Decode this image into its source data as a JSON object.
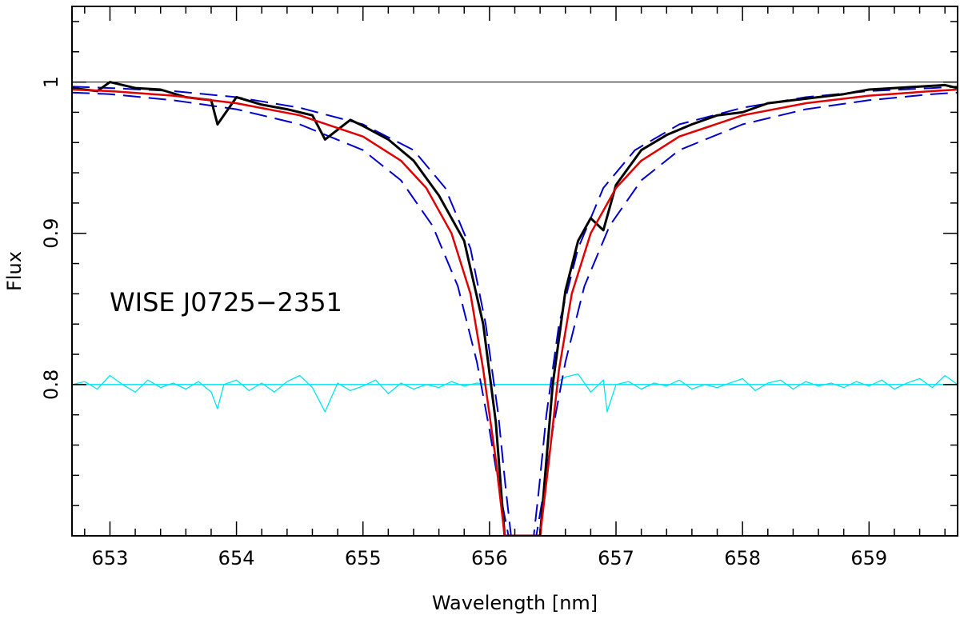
{
  "chart_data": {
    "type": "line",
    "title": "",
    "xlabel": "Wavelength [nm]",
    "ylabel": "Flux",
    "xlim": [
      652.7,
      659.7
    ],
    "ylim": [
      0.7,
      1.05
    ],
    "xticks": [
      653,
      654,
      655,
      656,
      657,
      658,
      659
    ],
    "xtick_labels": [
      "653",
      "654",
      "655",
      "656",
      "657",
      "658",
      "659"
    ],
    "yticks": [
      0.8,
      0.9,
      1.0
    ],
    "ytick_labels": [
      "0.8",
      "0.9",
      "1"
    ],
    "grid": false,
    "annotation": "WISE J0725−2351",
    "colors": {
      "observed": "#000000",
      "model": "#e00000",
      "model_bounds": "#0000cc",
      "residuals": "#00e5ee",
      "continuum": "#000000"
    },
    "series": [
      {
        "style": "solid-black",
        "x": [
          652.7,
          652.9,
          653.0,
          653.2,
          653.4,
          653.6,
          653.8,
          653.85,
          654.0,
          654.2,
          654.4,
          654.6,
          654.7,
          654.9,
          655.0,
          655.2,
          655.4,
          655.6,
          655.8,
          655.95,
          656.05,
          656.12,
          656.4,
          656.5,
          656.6,
          656.7,
          656.8,
          656.9,
          657.0,
          657.2,
          657.4,
          657.6,
          657.8,
          658.0,
          658.2,
          658.4,
          658.6,
          658.8,
          659.0,
          659.2,
          659.4,
          659.6,
          659.7
        ],
        "y": [
          0.996,
          0.994,
          1.0,
          0.996,
          0.995,
          0.99,
          0.988,
          0.972,
          0.99,
          0.985,
          0.982,
          0.978,
          0.962,
          0.975,
          0.971,
          0.962,
          0.948,
          0.925,
          0.895,
          0.84,
          0.775,
          0.7,
          0.7,
          0.8,
          0.862,
          0.895,
          0.91,
          0.902,
          0.932,
          0.955,
          0.965,
          0.972,
          0.978,
          0.98,
          0.986,
          0.988,
          0.99,
          0.992,
          0.995,
          0.996,
          0.997,
          0.998,
          0.996
        ]
      },
      {
        "style": "solid-red",
        "x": [
          652.7,
          653.0,
          653.5,
          654.0,
          654.5,
          655.0,
          655.3,
          655.5,
          655.7,
          655.85,
          655.95,
          656.05,
          656.12,
          656.4,
          656.47,
          656.55,
          656.65,
          656.8,
          657.0,
          657.2,
          657.5,
          658.0,
          658.5,
          659.0,
          659.5,
          659.7
        ],
        "y": [
          0.995,
          0.994,
          0.991,
          0.986,
          0.978,
          0.964,
          0.948,
          0.93,
          0.9,
          0.86,
          0.81,
          0.75,
          0.7,
          0.7,
          0.75,
          0.81,
          0.86,
          0.9,
          0.93,
          0.948,
          0.964,
          0.978,
          0.986,
          0.991,
          0.994,
          0.995
        ]
      },
      {
        "style": "dashed-blue-outer",
        "x": [
          652.7,
          653.0,
          653.5,
          654.0,
          654.5,
          655.0,
          655.3,
          655.55,
          655.75,
          655.9,
          656.0,
          656.08,
          656.15,
          656.37,
          656.43,
          656.5,
          656.6,
          656.75,
          656.95,
          657.2,
          657.5,
          658.0,
          658.5,
          659.0,
          659.5,
          659.7
        ],
        "y": [
          0.993,
          0.992,
          0.988,
          0.982,
          0.972,
          0.955,
          0.935,
          0.905,
          0.865,
          0.815,
          0.77,
          0.73,
          0.7,
          0.7,
          0.73,
          0.77,
          0.815,
          0.865,
          0.905,
          0.935,
          0.955,
          0.972,
          0.982,
          0.988,
          0.992,
          0.993
        ]
      },
      {
        "style": "dashed-blue-inner",
        "x": [
          652.7,
          653.0,
          653.5,
          654.0,
          654.5,
          655.0,
          655.4,
          655.65,
          655.85,
          655.97,
          656.07,
          656.13,
          656.17,
          656.35,
          656.39,
          656.45,
          656.55,
          656.7,
          656.9,
          657.15,
          657.5,
          658.0,
          658.5,
          659.0,
          659.5,
          659.7
        ],
        "y": [
          0.997,
          0.996,
          0.994,
          0.99,
          0.983,
          0.972,
          0.955,
          0.93,
          0.89,
          0.84,
          0.78,
          0.73,
          0.7,
          0.7,
          0.73,
          0.78,
          0.84,
          0.89,
          0.93,
          0.955,
          0.972,
          0.983,
          0.99,
          0.994,
          0.996,
          0.997
        ]
      },
      {
        "style": "solid-cyan",
        "x": [
          652.7,
          652.8,
          652.9,
          653.0,
          653.1,
          653.2,
          653.3,
          653.4,
          653.5,
          653.6,
          653.7,
          653.8,
          653.85,
          653.9,
          654.0,
          654.1,
          654.2,
          654.3,
          654.4,
          654.5,
          654.6,
          654.65,
          654.7,
          654.8,
          654.9,
          655.0,
          655.1,
          655.2,
          655.3,
          655.4,
          655.5,
          655.6,
          655.7,
          655.8,
          655.9,
          656.0,
          656.1,
          656.5,
          656.6,
          656.7,
          656.8,
          656.9,
          656.93,
          657.0,
          657.1,
          657.2,
          657.3,
          657.4,
          657.5,
          657.6,
          657.7,
          657.8,
          657.9,
          658.0,
          658.1,
          658.2,
          658.3,
          658.4,
          658.5,
          658.6,
          658.7,
          658.8,
          658.9,
          659.0,
          659.1,
          659.2,
          659.3,
          659.4,
          659.5,
          659.6,
          659.7
        ],
        "y": [
          0.8,
          0.802,
          0.797,
          0.806,
          0.8,
          0.795,
          0.803,
          0.798,
          0.801,
          0.797,
          0.802,
          0.795,
          0.784,
          0.8,
          0.803,
          0.796,
          0.801,
          0.795,
          0.802,
          0.806,
          0.798,
          0.79,
          0.782,
          0.801,
          0.796,
          0.799,
          0.803,
          0.794,
          0.801,
          0.797,
          0.8,
          0.798,
          0.802,
          0.799,
          0.801,
          0.8,
          0.8,
          0.8,
          0.805,
          0.807,
          0.795,
          0.803,
          0.782,
          0.8,
          0.802,
          0.797,
          0.801,
          0.799,
          0.803,
          0.797,
          0.8,
          0.798,
          0.801,
          0.804,
          0.796,
          0.801,
          0.803,
          0.797,
          0.802,
          0.799,
          0.801,
          0.798,
          0.802,
          0.799,
          0.803,
          0.797,
          0.801,
          0.804,
          0.798,
          0.806,
          0.8
        ]
      },
      {
        "style": "cyan-zero",
        "x": [
          652.7,
          659.7
        ],
        "y": [
          0.8,
          0.8
        ]
      },
      {
        "style": "continuum",
        "x": [
          652.7,
          659.7
        ],
        "y": [
          1.0,
          1.0
        ]
      }
    ]
  }
}
